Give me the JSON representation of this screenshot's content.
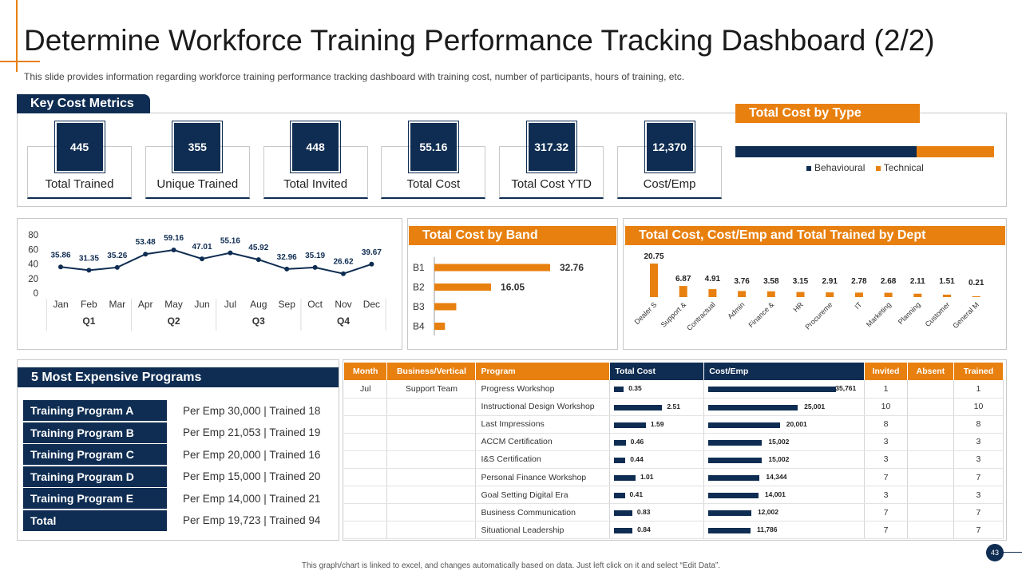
{
  "title": "Determine Workforce Training Performance Tracking Dashboard (2/2)",
  "subtitle": "This slide provides information regarding workforce training performance tracking dashboard with training cost, number of participants, hours of training, etc.",
  "colors": {
    "navy": "#0f2d52",
    "orange": "#e8800f"
  },
  "key_cost_metrics": {
    "header": "Key Cost Metrics",
    "items": [
      {
        "value": "445",
        "label": "Total Trained"
      },
      {
        "value": "355",
        "label": "Unique Trained"
      },
      {
        "value": "448",
        "label": "Total Invited"
      },
      {
        "value": "55.16",
        "label": "Total Cost"
      },
      {
        "value": "317.32",
        "label": "Total Cost YTD"
      },
      {
        "value": "12,370",
        "label": "Cost/Emp"
      }
    ]
  },
  "cost_by_type": {
    "header": "Total Cost by Type",
    "legend": [
      "Behavioural",
      "Technical"
    ]
  },
  "band_header": "Total Cost by Band",
  "dept_header": "Total Cost,  Cost/Emp and Total Trained by Dept",
  "programs": {
    "header": "5 Most Expensive Programs",
    "rows": [
      {
        "name": "Training Program A",
        "value": "Per Emp 30,000 | Trained  18"
      },
      {
        "name": "Training Program B",
        "value": "Per Emp 21,053 | Trained  19"
      },
      {
        "name": "Training Program C",
        "value": "Per Emp 20,000 | Trained  16"
      },
      {
        "name": "Training Program D",
        "value": "Per Emp 15,000 | Trained  20"
      },
      {
        "name": "Training Program E",
        "value": "Per Emp 14,000 | Trained  21"
      },
      {
        "name": "Total",
        "value": "Per Emp 19,723 | Trained  94"
      }
    ]
  },
  "table": {
    "headers": [
      "Month",
      "Business/Vertical",
      "Program",
      "Total Cost",
      "Cost/Emp",
      "Invited",
      "Absent",
      "Trained"
    ],
    "rows": [
      {
        "month": "Jul",
        "vertical": "Support Team",
        "program": "Progress Workshop",
        "total_cost": 0.35,
        "total_cost_label": "0.35",
        "cost_emp": 35761,
        "cost_emp_label": "35,761",
        "invited": "1",
        "absent": "",
        "trained": "1"
      },
      {
        "month": "",
        "vertical": "",
        "program": "Instructional Design Workshop",
        "total_cost": 2.51,
        "total_cost_label": "2.51",
        "cost_emp": 25001,
        "cost_emp_label": "25,001",
        "invited": "10",
        "absent": "",
        "trained": "10"
      },
      {
        "month": "",
        "vertical": "",
        "program": "Last Impressions",
        "total_cost": 1.59,
        "total_cost_label": "1.59",
        "cost_emp": 20001,
        "cost_emp_label": "20,001",
        "invited": "8",
        "absent": "",
        "trained": "8"
      },
      {
        "month": "",
        "vertical": "",
        "program": "ACCM Certification",
        "total_cost": 0.46,
        "total_cost_label": "0.46",
        "cost_emp": 15002,
        "cost_emp_label": "15,002",
        "invited": "3",
        "absent": "",
        "trained": "3"
      },
      {
        "month": "",
        "vertical": "",
        "program": "I&S Certification",
        "total_cost": 0.44,
        "total_cost_label": "0.44",
        "cost_emp": 15002,
        "cost_emp_label": "15,002",
        "invited": "3",
        "absent": "",
        "trained": "3"
      },
      {
        "month": "",
        "vertical": "",
        "program": "Personal Finance Workshop",
        "total_cost": 1.01,
        "total_cost_label": "1.01",
        "cost_emp": 14344,
        "cost_emp_label": "14,344",
        "invited": "7",
        "absent": "",
        "trained": "7"
      },
      {
        "month": "",
        "vertical": "",
        "program": "Goal Setting Digital Era",
        "total_cost": 0.41,
        "total_cost_label": "0.41",
        "cost_emp": 14001,
        "cost_emp_label": "14,001",
        "invited": "3",
        "absent": "",
        "trained": "3"
      },
      {
        "month": "",
        "vertical": "",
        "program": "Business Communication",
        "total_cost": 0.83,
        "total_cost_label": "0.83",
        "cost_emp": 12002,
        "cost_emp_label": "12,002",
        "invited": "7",
        "absent": "",
        "trained": "7"
      },
      {
        "month": "",
        "vertical": "",
        "program": "Situational Leadership",
        "total_cost": 0.84,
        "total_cost_label": "0.84",
        "cost_emp": 11786,
        "cost_emp_label": "11,786",
        "invited": "7",
        "absent": "",
        "trained": "7"
      }
    ]
  },
  "chart_data": [
    {
      "id": "monthly",
      "type": "line",
      "categories": [
        "Jan",
        "Feb",
        "Mar",
        "Apr",
        "May",
        "Jun",
        "Jul",
        "Aug",
        "Sep",
        "Oct",
        "Nov",
        "Dec"
      ],
      "values": [
        35.86,
        31.35,
        35.26,
        53.48,
        59.16,
        47.01,
        55.16,
        45.92,
        32.96,
        35.19,
        26.62,
        39.67
      ],
      "value_labels": [
        "35.86",
        "31.35",
        "35.26",
        "53.48",
        "59.16",
        "47.01",
        "55.16",
        "45.92",
        "32.96",
        "35.19",
        "26.62",
        "39.67"
      ],
      "groups": [
        "Q1",
        "Q2",
        "Q3",
        "Q4"
      ],
      "yticks": [
        "0",
        "20",
        "40",
        "60",
        "80"
      ],
      "ylim": [
        0,
        80
      ],
      "color": "#0f2d52"
    },
    {
      "id": "cost_by_type",
      "type": "bar",
      "orientation": "horizontal-stacked",
      "series": [
        {
          "name": "Behavioural",
          "values": [
            70
          ]
        },
        {
          "name": "Technical",
          "values": [
            30
          ]
        }
      ],
      "unit": "percent",
      "colors": [
        "#0f2d52",
        "#e8800f"
      ]
    },
    {
      "id": "band",
      "type": "bar",
      "orientation": "horizontal",
      "categories": [
        "B1",
        "B2",
        "B3",
        "B4"
      ],
      "values": [
        32.76,
        16.05,
        6.2,
        3.0
      ],
      "value_labels": [
        "32.76",
        "16.05",
        "",
        ""
      ],
      "color": "#e8800f"
    },
    {
      "id": "dept",
      "type": "bar",
      "categories": [
        "Dealer S",
        "Support &",
        "Contractual",
        "Admin",
        "Finance &",
        "HR",
        "Procureme",
        "IT",
        "Marketing",
        "Planning",
        "Customer",
        "General M"
      ],
      "values": [
        20.75,
        6.87,
        4.91,
        3.76,
        3.58,
        3.15,
        2.91,
        2.78,
        2.68,
        2.11,
        1.51,
        0.21
      ],
      "value_labels": [
        "20.75",
        "6.87",
        "4.91",
        "3.76",
        "3.58",
        "3.15",
        "2.91",
        "2.78",
        "2.68",
        "2.11",
        "1.51",
        "0.21"
      ],
      "color": "#e8800f"
    }
  ],
  "footer": "This graph/chart is linked to excel, and changes automatically based on data. Just left click on it and select “Edit Data”.",
  "page_number": "43"
}
